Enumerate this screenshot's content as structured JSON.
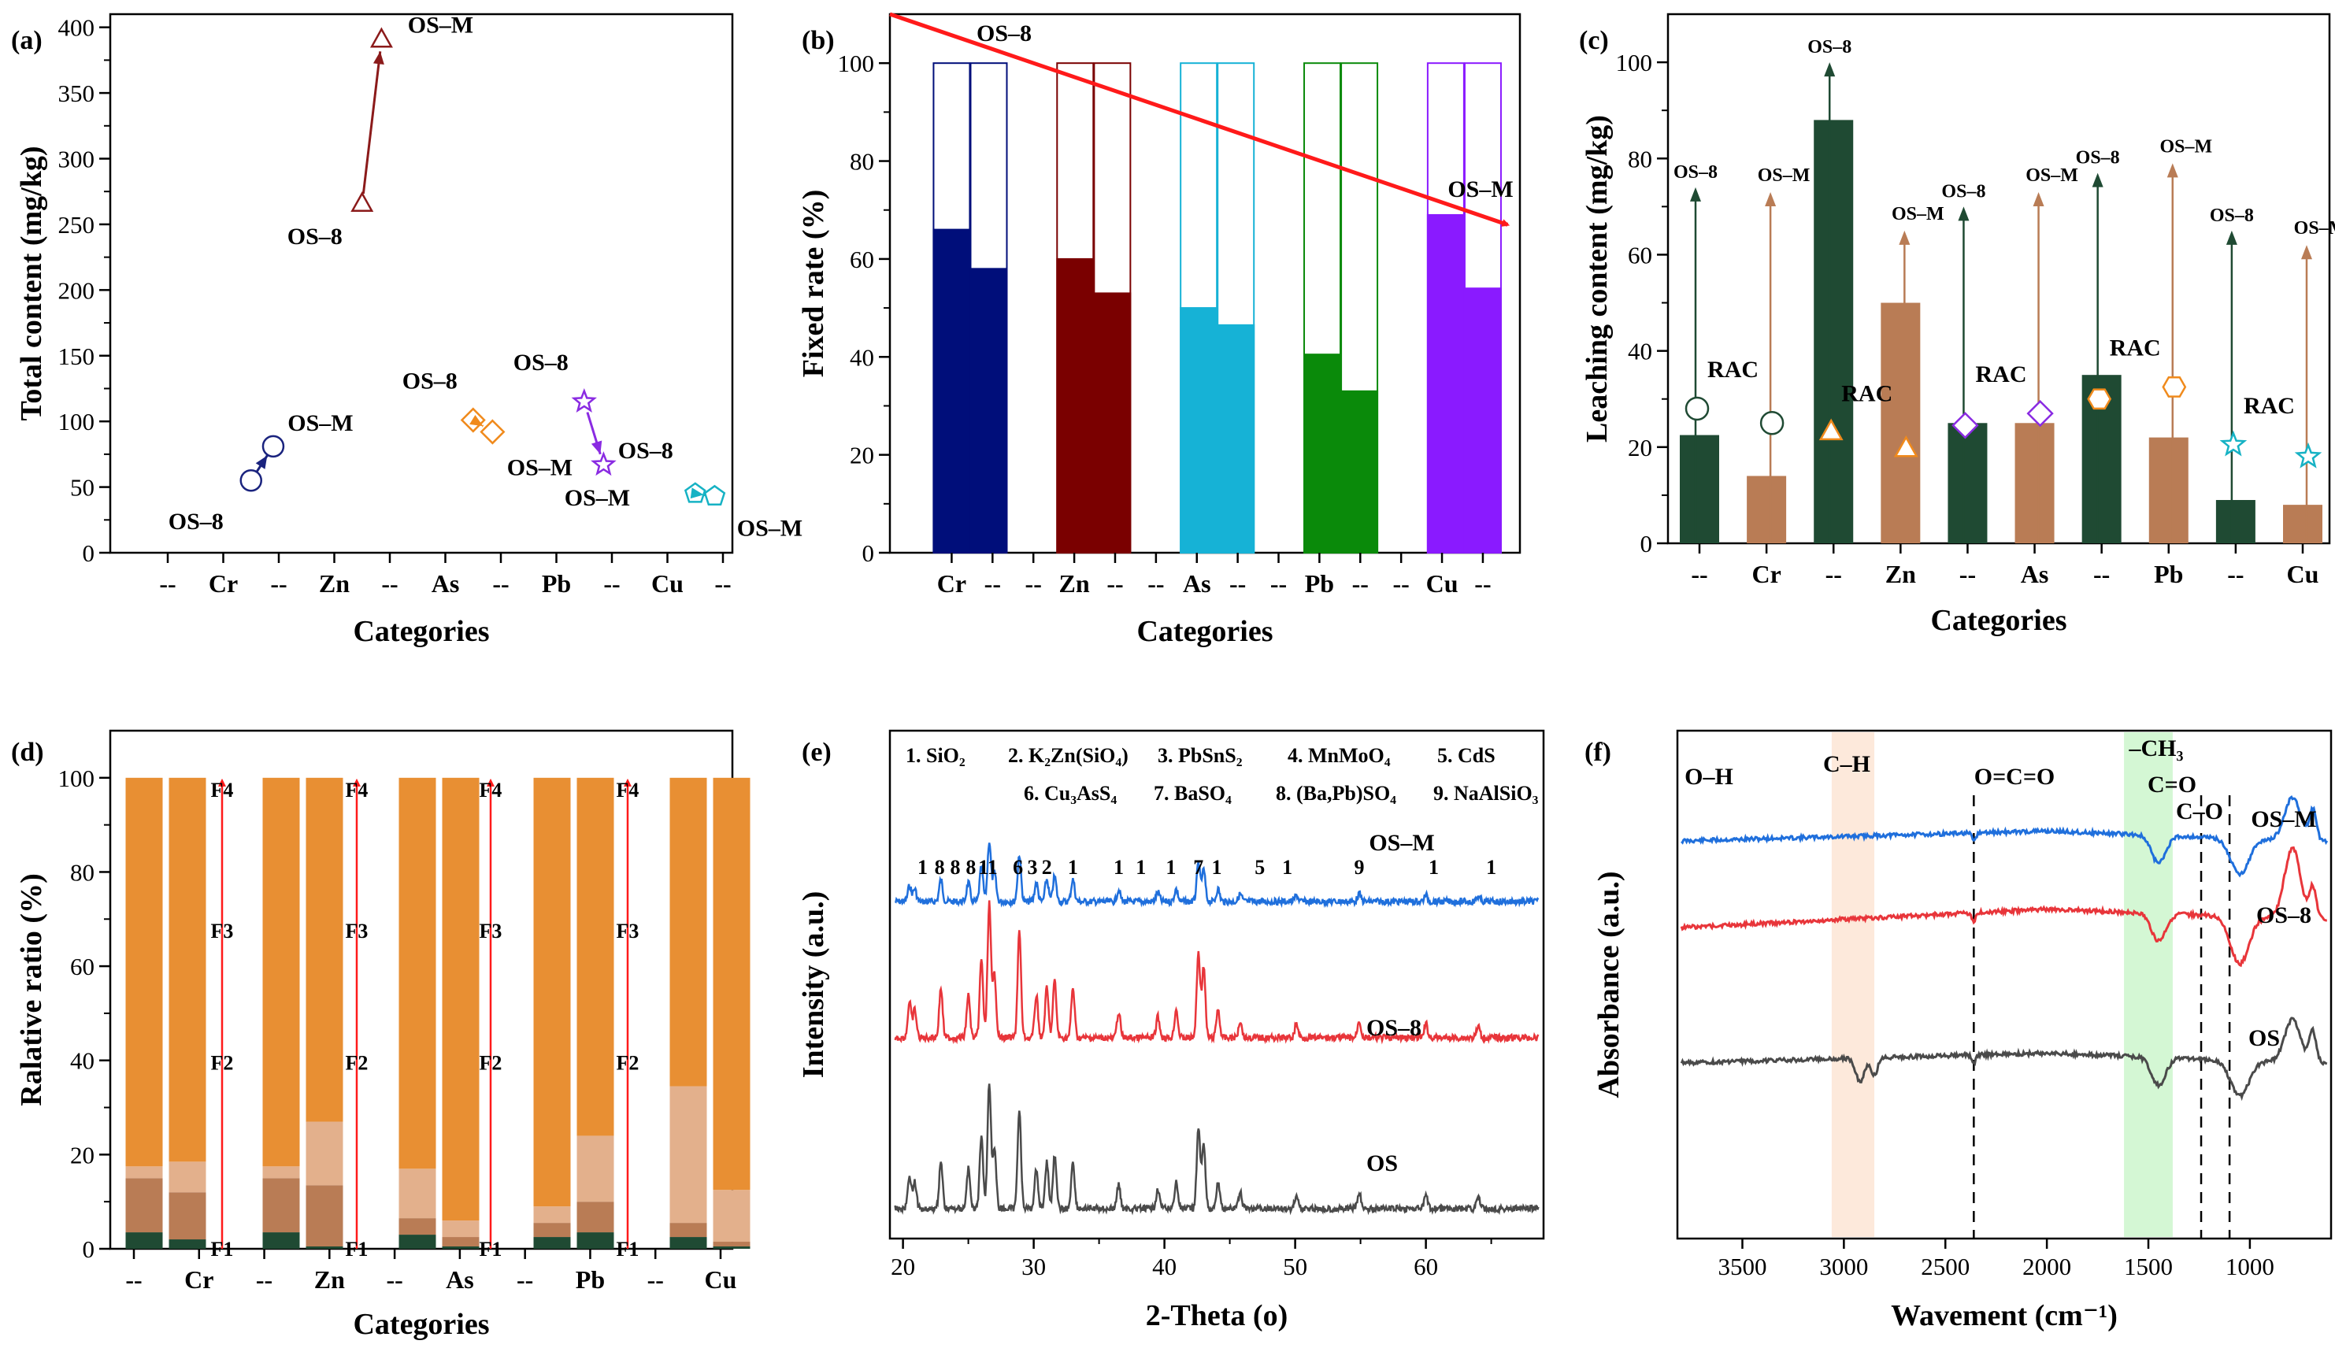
{
  "chart_data": [
    {
      "panel": "(a)",
      "type": "scatter",
      "xlabel": "Categories",
      "ylabel": "Total content (mg/kg)",
      "ylim": [
        0,
        410
      ],
      "yticks": [
        0,
        50,
        100,
        150,
        200,
        250,
        300,
        350,
        400
      ],
      "tick_labels": [
        "--",
        "Cr",
        "--",
        "Zn",
        "--",
        "As",
        "--",
        "Pb",
        "--",
        "Cu",
        "--"
      ],
      "series": [
        {
          "name": "Cr",
          "color": "#1a237e",
          "marker": "circle",
          "x": [
            1.5,
            1.9
          ],
          "values": [
            55,
            81
          ],
          "labels": [
            "OS–8",
            "OS–M"
          ]
        },
        {
          "name": "Zn",
          "color": "#8b1a1a",
          "marker": "triangle",
          "x": [
            3.5,
            3.85
          ],
          "values": [
            265,
            390
          ],
          "labels": [
            "OS–8",
            "OS–M"
          ]
        },
        {
          "name": "As",
          "color": "#f08a1c",
          "marker": "diamond",
          "x": [
            5.5,
            5.85
          ],
          "values": [
            101,
            92
          ],
          "labels": [
            "OS–8",
            "OS–M"
          ]
        },
        {
          "name": "Pb",
          "color": "#8a2be2",
          "marker": "star",
          "x": [
            7.5,
            7.85
          ],
          "values": [
            115,
            67
          ],
          "labels": [
            "OS–8",
            "OS–M"
          ]
        },
        {
          "name": "Cu",
          "color": "#16b2c4",
          "marker": "pentagon",
          "x": [
            9.5,
            9.85
          ],
          "values": [
            45,
            43
          ],
          "labels": [
            "OS–8",
            "OS–M"
          ]
        }
      ]
    },
    {
      "panel": "(b)",
      "type": "bar",
      "xlabel": "Categories",
      "ylabel": "Fixed rate (%)",
      "ylim": [
        0,
        110
      ],
      "yticks": [
        0,
        20,
        40,
        60,
        80,
        100
      ],
      "tick_labels": [
        "Cr",
        "--",
        "--",
        "Zn",
        "--",
        "--",
        "As",
        "--",
        "--",
        "Pb",
        "--",
        "--",
        "Cu",
        "--"
      ],
      "bars": [
        {
          "group": "Cr",
          "x": 1.0,
          "value": 66,
          "total": 100,
          "color": "#000e7a"
        },
        {
          "group": "Cr",
          "x": 1.3,
          "value": 58,
          "total": 100,
          "color": "#000e7a"
        },
        {
          "group": "Zn",
          "x": 2.0,
          "value": 60,
          "total": 100,
          "color": "#7a0000"
        },
        {
          "group": "Zn",
          "x": 2.3,
          "value": 53,
          "total": 100,
          "color": "#7a0000"
        },
        {
          "group": "As",
          "x": 3.0,
          "value": 50,
          "total": 100,
          "color": "#16b2d6"
        },
        {
          "group": "As",
          "x": 3.3,
          "value": 46.5,
          "total": 100,
          "color": "#16b2d6"
        },
        {
          "group": "Pb",
          "x": 4.0,
          "value": 40.5,
          "total": 100,
          "color": "#0a8a0a"
        },
        {
          "group": "Pb",
          "x": 4.3,
          "value": 33,
          "total": 100,
          "color": "#0a8a0a"
        },
        {
          "group": "Cu",
          "x": 5.0,
          "value": 69,
          "total": 100,
          "color": "#8a1aff"
        },
        {
          "group": "Cu",
          "x": 5.3,
          "value": 54,
          "total": 100,
          "color": "#8a1aff"
        }
      ],
      "annotations": [
        "OS–8",
        "OS–M"
      ],
      "arrow": {
        "from": [
          0.5,
          110
        ],
        "to": [
          5.5,
          67
        ],
        "color": "#ff1a1a"
      }
    },
    {
      "panel": "(c)",
      "type": "bar",
      "xlabel": "Categories",
      "ylabel": "Leaching content (mg/kg)",
      "ylim": [
        0,
        110
      ],
      "yticks": [
        0,
        20,
        40,
        60,
        80,
        100
      ],
      "tick_labels": [
        "--",
        "Cr",
        "--",
        "Zn",
        "--",
        "As",
        "--",
        "Pb",
        "--",
        "Cu"
      ],
      "series": [
        {
          "name": "OS–8",
          "color": "#1f4a33",
          "values": [
            22.5,
            88,
            25,
            35,
            9
          ]
        },
        {
          "name": "OS–M",
          "color": "#b97c55",
          "values": [
            14,
            50,
            25,
            22,
            8
          ]
        }
      ],
      "rac": [
        {
          "group": "Cr",
          "os8": 28,
          "osm": 25,
          "marker": "circle"
        },
        {
          "group": "Zn",
          "os8": 23,
          "osm": 19.5,
          "marker": "triangle"
        },
        {
          "group": "As",
          "os8": 24.5,
          "osm": 27,
          "marker": "diamond"
        },
        {
          "group": "Pb",
          "os8": 30,
          "osm": 32.5,
          "marker": "hexagon"
        },
        {
          "group": "Cu",
          "os8": 20.5,
          "osm": 18,
          "marker": "star"
        }
      ],
      "arrow_tops": [
        {
          "group": "Cr",
          "os8": 74,
          "osm": 73
        },
        {
          "group": "Zn",
          "os8": 100,
          "osm": 65
        },
        {
          "group": "As",
          "os8": 70,
          "osm": 73
        },
        {
          "group": "Pb",
          "os8": 77,
          "osm": 79
        },
        {
          "group": "Cu",
          "os8": 65,
          "osm": 62
        }
      ],
      "labels": {
        "os8": "OS–8",
        "osm": "OS–M",
        "rac": "RAC"
      }
    },
    {
      "panel": "(d)",
      "type": "bar",
      "stacked": true,
      "xlabel": "Categories",
      "ylabel": "Ralative ratio (%)",
      "ylim": [
        0,
        110
      ],
      "yticks": [
        0,
        20,
        40,
        60,
        80,
        100
      ],
      "tick_labels": [
        "--",
        "Cr",
        "--",
        "Zn",
        "--",
        "As",
        "--",
        "Pb",
        "--",
        "Cu"
      ],
      "fractions": [
        "F1",
        "F2",
        "F3",
        "F4"
      ],
      "fraction_colors": [
        "#1f4a33",
        "#b97c55",
        "#e3b08c",
        "#e88f33"
      ],
      "bars": [
        {
          "group": "Cr",
          "values": [
            3.5,
            11.5,
            2.5,
            82.5
          ]
        },
        {
          "group": "Cr",
          "values": [
            2,
            10,
            6.5,
            81.5
          ]
        },
        {
          "group": "Zn",
          "values": [
            3.5,
            11.5,
            2.5,
            82.5
          ]
        },
        {
          "group": "Zn",
          "values": [
            0.5,
            13,
            13.5,
            73
          ]
        },
        {
          "group": "As",
          "values": [
            3,
            3.5,
            10.5,
            83
          ]
        },
        {
          "group": "As",
          "values": [
            0.5,
            2,
            3.5,
            94
          ]
        },
        {
          "group": "Pb",
          "values": [
            2.5,
            3,
            3.5,
            91
          ]
        },
        {
          "group": "Pb",
          "values": [
            3.5,
            6.5,
            14,
            76
          ]
        },
        {
          "group": "Cu",
          "values": [
            2.5,
            3,
            29,
            65.5
          ]
        },
        {
          "group": "Cu",
          "values": [
            0.5,
            1,
            11,
            87.5
          ]
        }
      ]
    },
    {
      "panel": "(e)",
      "type": "line",
      "xlabel": "2-Theta (o)",
      "ylabel": "Intensity (a.u.)",
      "xlim": [
        19,
        69
      ],
      "xticks": [
        20,
        30,
        40,
        50,
        60
      ],
      "series": [
        {
          "name": "OS–M",
          "color": "#1f6fdc"
        },
        {
          "name": "OS–8",
          "color": "#e8353a"
        },
        {
          "name": "OS",
          "color": "#4a4a4a"
        }
      ],
      "peaks": [
        20.5,
        20.9,
        22.9,
        25.0,
        26.0,
        26.6,
        27.0,
        28.9,
        30.2,
        31.0,
        31.6,
        33.0,
        36.5,
        39.5,
        40.9,
        42.6,
        43.0,
        44.1,
        45.8,
        50.1,
        54.9,
        60.0,
        64.0
      ],
      "legend_lines": [
        [
          "1. SiO₂",
          "2. K₂Zn(SiO₄)",
          "3. PbSnS₂",
          "4. MnMoO₄",
          "5. CdS"
        ],
        [
          "6. Cu₃AsS₄",
          "7. BaSO₄",
          "8. (Ba,Pb)SO₄",
          "9. NaAlSiO₃"
        ]
      ],
      "peak_labels": [
        {
          "text": "1",
          "x": 21.5
        },
        {
          "text": "8",
          "x": 22.8
        },
        {
          "text": "8",
          "x": 24.0
        },
        {
          "text": "8",
          "x": 25.2
        },
        {
          "text": "11",
          "x": 26.5
        },
        {
          "text": "6",
          "x": 28.8
        },
        {
          "text": "3",
          "x": 29.9
        },
        {
          "text": "2",
          "x": 31.0
        },
        {
          "text": "1",
          "x": 33.0
        },
        {
          "text": "1",
          "x": 36.5
        },
        {
          "text": "1",
          "x": 38.2
        },
        {
          "text": "1",
          "x": 40.5
        },
        {
          "text": "7",
          "x": 42.6
        },
        {
          "text": "1",
          "x": 44.0
        },
        {
          "text": "5",
          "x": 47.3
        },
        {
          "text": "1",
          "x": 49.4
        },
        {
          "text": "9",
          "x": 54.9
        },
        {
          "text": "1",
          "x": 60.6
        },
        {
          "text": "1",
          "x": 65.0
        }
      ]
    },
    {
      "panel": "(f)",
      "type": "line",
      "xlabel": "Wavement (cm⁻¹)",
      "ylabel": "Absorbance (a.u.)",
      "xlim": [
        3820,
        600
      ],
      "xticks": [
        3500,
        3000,
        2500,
        2000,
        1500,
        1000
      ],
      "series": [
        {
          "name": "OS–M",
          "color": "#1f6fdc"
        },
        {
          "name": "OS–8",
          "color": "#e8353a"
        },
        {
          "name": "OS",
          "color": "#4a4a4a"
        }
      ],
      "bands": [
        {
          "label": "O–H",
          "position": 3650
        },
        {
          "label": "C–H",
          "range": [
            3060,
            2850
          ],
          "color": "#fce4d2"
        },
        {
          "label": "O=C=O",
          "position": 2360
        },
        {
          "label": "–CH₃",
          "range": [
            1620,
            1380
          ],
          "color": "#c9f5c9"
        },
        {
          "label": "C=O",
          "position": 1240
        },
        {
          "label": "C–O",
          "position": 1100
        }
      ]
    }
  ],
  "panel_labels": [
    "(a)",
    "(b)",
    "(c)",
    "(d)",
    "(e)",
    "(f)"
  ]
}
